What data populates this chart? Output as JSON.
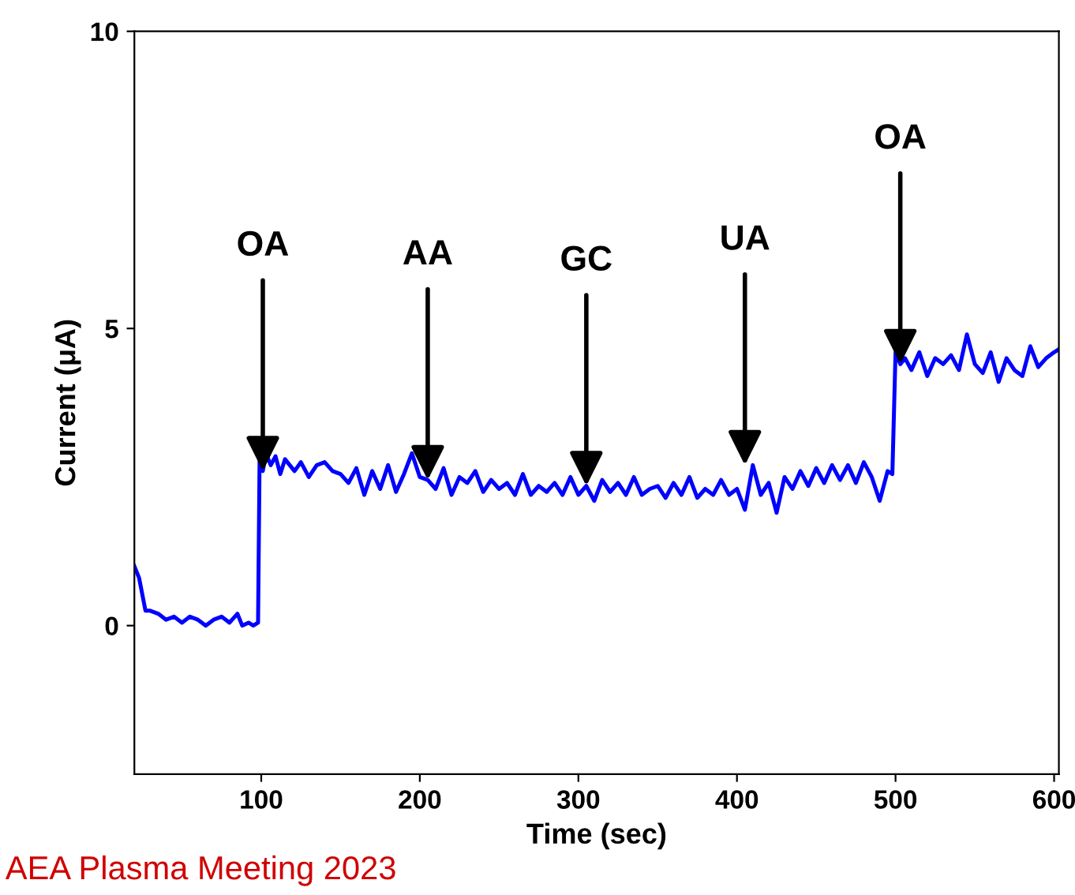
{
  "chart_data": {
    "type": "line",
    "xlabel": "Time (sec)",
    "ylabel": "Current (μA)",
    "xlim": [
      20,
      603
    ],
    "ylim": [
      -2.5,
      10
    ],
    "xticks": [
      100,
      200,
      300,
      400,
      500,
      600
    ],
    "yticks": [
      0,
      5,
      10
    ],
    "grid": false,
    "marker": "none",
    "line_style": "solid",
    "series": [
      {
        "color": "#0000ff",
        "x": [
          20,
          23,
          27,
          30,
          35,
          40,
          45,
          50,
          55,
          60,
          65,
          70,
          75,
          80,
          85,
          88,
          92,
          95,
          98,
          99,
          101,
          103,
          106,
          109,
          112,
          115,
          118,
          121,
          125,
          130,
          135,
          140,
          145,
          150,
          155,
          160,
          165,
          170,
          175,
          180,
          185,
          190,
          195,
          200,
          205,
          210,
          215,
          220,
          225,
          230,
          235,
          240,
          245,
          250,
          255,
          260,
          265,
          270,
          275,
          280,
          285,
          290,
          295,
          300,
          305,
          310,
          315,
          320,
          325,
          330,
          335,
          340,
          345,
          350,
          355,
          360,
          365,
          370,
          375,
          380,
          385,
          390,
          395,
          400,
          405,
          410,
          415,
          420,
          425,
          430,
          435,
          440,
          445,
          450,
          455,
          460,
          465,
          470,
          475,
          480,
          485,
          490,
          495,
          498,
          500,
          503,
          506,
          510,
          515,
          520,
          525,
          530,
          535,
          540,
          545,
          550,
          555,
          560,
          565,
          570,
          575,
          580,
          585,
          590,
          595,
          600,
          603
        ],
        "values": [
          1.0,
          0.8,
          0.25,
          0.25,
          0.2,
          0.1,
          0.15,
          0.05,
          0.15,
          0.1,
          0.0,
          0.1,
          0.15,
          0.05,
          0.2,
          0.0,
          0.05,
          0.0,
          0.05,
          2.9,
          2.6,
          2.9,
          2.7,
          2.85,
          2.55,
          2.8,
          2.7,
          2.6,
          2.75,
          2.5,
          2.7,
          2.75,
          2.6,
          2.55,
          2.4,
          2.65,
          2.2,
          2.6,
          2.3,
          2.7,
          2.25,
          2.55,
          2.9,
          2.5,
          2.45,
          2.3,
          2.65,
          2.2,
          2.5,
          2.4,
          2.6,
          2.25,
          2.45,
          2.3,
          2.4,
          2.2,
          2.55,
          2.2,
          2.35,
          2.25,
          2.4,
          2.2,
          2.5,
          2.2,
          2.35,
          2.1,
          2.45,
          2.25,
          2.4,
          2.2,
          2.5,
          2.2,
          2.3,
          2.35,
          2.15,
          2.4,
          2.2,
          2.5,
          2.15,
          2.3,
          2.2,
          2.45,
          2.2,
          2.3,
          1.95,
          2.7,
          2.2,
          2.4,
          1.9,
          2.5,
          2.3,
          2.6,
          2.35,
          2.65,
          2.4,
          2.7,
          2.45,
          2.7,
          2.4,
          2.75,
          2.5,
          2.1,
          2.6,
          2.55,
          4.6,
          4.4,
          4.5,
          4.3,
          4.6,
          4.2,
          4.5,
          4.4,
          4.55,
          4.3,
          4.9,
          4.4,
          4.25,
          4.6,
          4.1,
          4.5,
          4.3,
          4.2,
          4.7,
          4.35,
          4.5,
          4.6,
          4.65
        ]
      }
    ],
    "annotations": [
      {
        "text": "OA",
        "x": 101,
        "y": 2.6
      },
      {
        "text": "AA",
        "x": 205,
        "y": 2.45
      },
      {
        "text": "GC",
        "x": 305,
        "y": 2.35
      },
      {
        "text": "UA",
        "x": 405,
        "y": 2.7
      },
      {
        "text": "OA",
        "x": 503,
        "y": 4.4
      },
      "AEA Plasma Meeting 2023"
    ]
  }
}
